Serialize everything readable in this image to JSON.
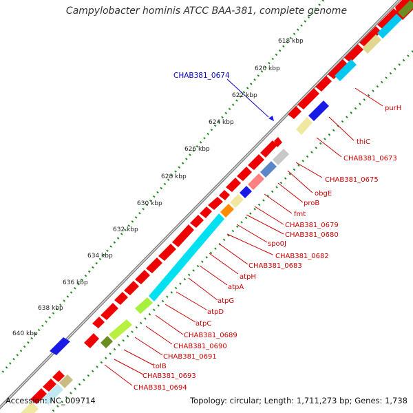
{
  "title": "Campylobacter hominis ATCC BAA-381, complete genome",
  "footer": {
    "accession": "Accession: NC_009714",
    "summary": "Topology: circular; Length: 1,711,273 bp; Genes: 1,738"
  },
  "colors": {
    "backbone": "#8a8a8a",
    "tick": "#1e8a1e",
    "gene_forward": "#ee0000",
    "label": "#cc0000",
    "label_blue": "#0000cc"
  },
  "scale_labels": [
    "618 kbp",
    "620 kbp",
    "622 kbp",
    "624 kbp",
    "626 kbp",
    "628 kbp",
    "630 kbp",
    "632 kbp",
    "634 kbp",
    "636 kbp",
    "638 kbp",
    "640 kbp"
  ],
  "gene_labels": [
    "purH",
    "thiC",
    "CHAB381_0673",
    "CHAB381_0675",
    "obgE",
    "proB",
    "fmt",
    "CHAB381_0679",
    "CHAB381_0680",
    "spo0J",
    "CHAB381_0682",
    "CHAB381_0683",
    "atpH",
    "atpA",
    "atpG",
    "atpD",
    "atpC",
    "CHAB381_0689",
    "CHAB381_0690",
    "CHAB381_0691",
    "tolB",
    "CHAB381_0693",
    "CHAB381_0694"
  ],
  "blue_label": "CHAB381_0674"
}
